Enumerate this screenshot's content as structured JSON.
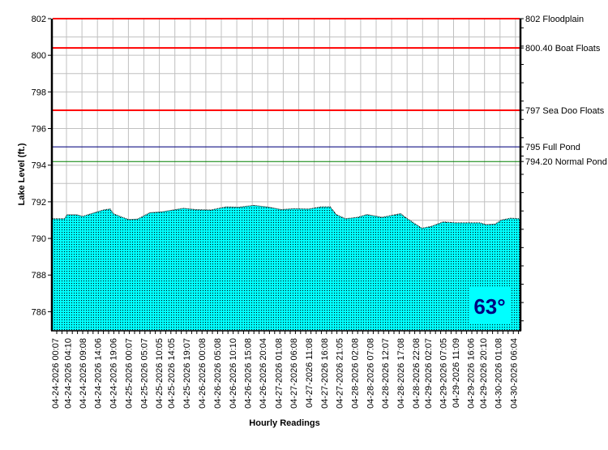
{
  "chart_data": {
    "type": "area",
    "title": "",
    "xlabel": "Hourly Readings",
    "ylabel": "Lake Level (ft.)",
    "ylim": [
      785,
      802
    ],
    "yticks": [
      786,
      788,
      790,
      792,
      794,
      796,
      798,
      800,
      802
    ],
    "grid": true,
    "fill_color": "#00FFFF",
    "xtick_labels": [
      "04-24-2026 00:07",
      "04-24-2026 04:10",
      "04-24-2026 09:08",
      "04-24-2026 14:06",
      "04-24-2026 19:06",
      "04-25-2026 00:07",
      "04-25-2026 05:07",
      "04-25-2026 10:05",
      "04-25-2026 14:05",
      "04-25-2026 19:07",
      "04-26-2026 00:08",
      "04-26-2026 05:08",
      "04-26-2026 10:10",
      "04-26-2026 15:08",
      "04-26-2026 20:04",
      "04-27-2026 01:08",
      "04-27-2026 06:08",
      "04-27-2026 11:08",
      "04-27-2026 16:08",
      "04-27-2026 21:05",
      "04-28-2026 02:08",
      "04-28-2026 07:08",
      "04-28-2026 12:07",
      "04-28-2026 17:08",
      "04-28-2026 22:08",
      "04-29-2026 02:07",
      "04-29-2026 07:05",
      "04-29-2026 11:09",
      "04-29-2026 16:06",
      "04-29-2026 20:10",
      "04-30-2026 01:08",
      "04-30-2026 06:04"
    ],
    "series": [
      {
        "points": [
          [
            "04-24-2026 00:07",
            791.07
          ],
          [
            "04-24-2026 03:07",
            791.07
          ],
          [
            "04-24-2026 04:07",
            791.29
          ],
          [
            "04-24-2026 07:07",
            791.29
          ],
          [
            "04-24-2026 09:07",
            791.2
          ],
          [
            "04-24-2026 16:07",
            791.56
          ],
          [
            "04-24-2026 18:07",
            791.6
          ],
          [
            "04-24-2026 19:07",
            791.35
          ],
          [
            "04-24-2026 22:07",
            791.15
          ],
          [
            "04-25-2026 00:07",
            791.03
          ],
          [
            "04-25-2026 03:07",
            791.05
          ],
          [
            "04-25-2026 07:07",
            791.4
          ],
          [
            "04-25-2026 11:07",
            791.45
          ],
          [
            "04-25-2026 18:07",
            791.64
          ],
          [
            "04-25-2026 22:07",
            791.57
          ],
          [
            "04-26-2026 03:07",
            791.55
          ],
          [
            "04-26-2026 08:07",
            791.72
          ],
          [
            "04-26-2026 12:07",
            791.7
          ],
          [
            "04-26-2026 17:07",
            791.8
          ],
          [
            "04-26-2026 22:07",
            791.7
          ],
          [
            "04-27-2026 02:07",
            791.57
          ],
          [
            "04-27-2026 06:07",
            791.62
          ],
          [
            "04-27-2026 11:07",
            791.6
          ],
          [
            "04-27-2026 15:07",
            791.72
          ],
          [
            "04-27-2026 18:07",
            791.72
          ],
          [
            "04-27-2026 20:07",
            791.3
          ],
          [
            "04-27-2026 23:07",
            791.07
          ],
          [
            "04-28-2026 03:07",
            791.15
          ],
          [
            "04-28-2026 06:07",
            791.3
          ],
          [
            "04-28-2026 11:07",
            791.15
          ],
          [
            "04-28-2026 17:07",
            791.35
          ],
          [
            "04-28-2026 19:07",
            791.1
          ],
          [
            "04-29-2026 00:07",
            790.55
          ],
          [
            "04-29-2026 03:07",
            790.65
          ],
          [
            "04-29-2026 07:07",
            790.9
          ],
          [
            "04-29-2026 11:07",
            790.85
          ],
          [
            "04-29-2026 19:07",
            790.85
          ],
          [
            "04-29-2026 21:07",
            790.75
          ],
          [
            "04-30-2026 00:07",
            790.78
          ],
          [
            "04-30-2026 02:07",
            791.0
          ],
          [
            "04-30-2026 05:07",
            791.1
          ],
          [
            "04-30-2026 08:07",
            791.07
          ]
        ]
      }
    ],
    "reference_lines": [
      {
        "value": 802,
        "label": "802 Floodplain",
        "color": "#FF0000"
      },
      {
        "value": 800.4,
        "label": "800.40 Boat Floats",
        "color": "#FF0000"
      },
      {
        "value": 797,
        "label": "797 Sea Doo Floats",
        "color": "#FF0000"
      },
      {
        "value": 795,
        "label": "795 Full Pond",
        "color": "#000080"
      },
      {
        "value": 794.2,
        "label": "794.20 Normal Pond",
        "color": "#008000"
      }
    ],
    "annotation": {
      "text": "63°",
      "color": "#000080"
    }
  }
}
